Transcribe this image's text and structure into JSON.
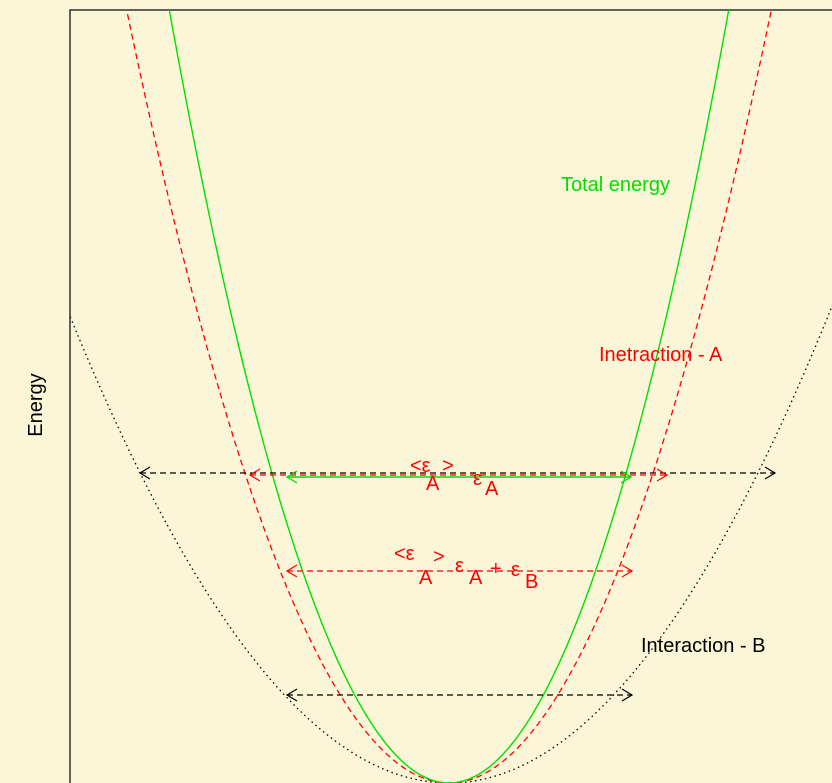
{
  "axis": {
    "ylabel": "Energy"
  },
  "colors": {
    "background": "#fcf6d8",
    "total": "#00e000",
    "interaction_a": "#ff0000",
    "interaction_b": "#000000",
    "frame": "#000000"
  },
  "curves": {
    "total": {
      "label": "Total energy"
    },
    "interaction_a": {
      "label": "Inetraction - A"
    },
    "interaction_b": {
      "label": "Interaction - B"
    }
  },
  "annotations": {
    "upper": {
      "avg_open": "<ε",
      "avg_sub": "A",
      "avg_close": ">",
      "eps": "ε",
      "eps_sub": "A"
    },
    "middle": {
      "avg_open": "<ε",
      "avg_sub": "A",
      "avg_close": ">",
      "eps1": "ε",
      "eps1_sub": "A",
      "plus": "+",
      "eps2": "ε",
      "eps2_sub": "B"
    }
  }
}
